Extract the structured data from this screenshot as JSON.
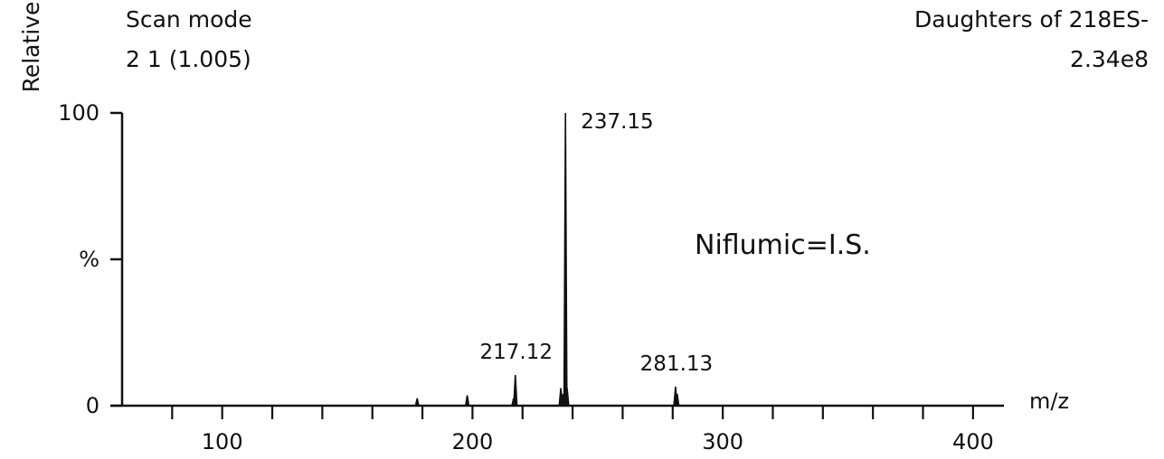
{
  "header": {
    "left_line1": "Scan mode",
    "left_line2": "2 1 (1.005)",
    "right_line1": "Daughters of 218ES-",
    "right_line2": "2.34e8"
  },
  "chart_data": {
    "type": "line",
    "title": "",
    "annotation": "Niflumic=I.S.",
    "xlabel": "m/z",
    "ylabel": "Relative",
    "y_unit_label": "%",
    "xlim": [
      60,
      408
    ],
    "ylim": [
      0,
      100
    ],
    "x_ticks_major": [
      100,
      200,
      300,
      400
    ],
    "x_tick_labels": [
      "100",
      "200",
      "300",
      "400"
    ],
    "x_ticks_minor": [
      80,
      120,
      140,
      160,
      180,
      220,
      240,
      260,
      280,
      320,
      340,
      360,
      380
    ],
    "y_tick_labels": [
      "100",
      "%",
      "0"
    ],
    "y_tick_values": [
      100,
      50,
      0
    ],
    "peaks": [
      {
        "mz": 177.9,
        "intensity": 2.5
      },
      {
        "mz": 197.9,
        "intensity": 3.5
      },
      {
        "mz": 216.4,
        "intensity": 2.5
      },
      {
        "mz": 217.12,
        "intensity": 10.5,
        "label": "217.12"
      },
      {
        "mz": 235.3,
        "intensity": 6.0
      },
      {
        "mz": 236.2,
        "intensity": 4.0
      },
      {
        "mz": 237.15,
        "intensity": 100,
        "label": "237.15"
      },
      {
        "mz": 237.8,
        "intensity": 6.0
      },
      {
        "mz": 281.13,
        "intensity": 6.5,
        "label": "281.13"
      },
      {
        "mz": 281.8,
        "intensity": 4.0
      }
    ],
    "grid": false,
    "legend": "none"
  }
}
